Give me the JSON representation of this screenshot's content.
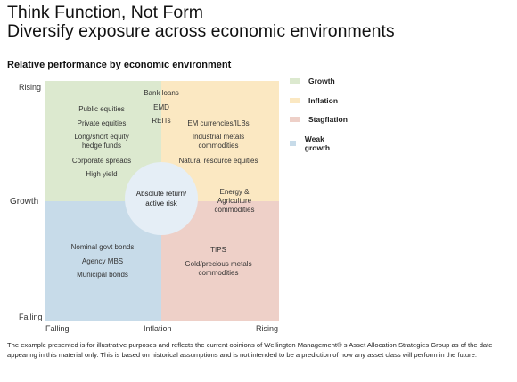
{
  "header": {
    "title_line1": "Think Function, Not Form",
    "title_line2": "Diversify exposure across economic environments",
    "subtitle": "Relative performance by economic environment"
  },
  "axes": {
    "y_top": "Rising",
    "y_label": "Growth",
    "y_bottom": "Falling",
    "x_left": "Falling",
    "x_label": "Inflation",
    "x_right": "Rising"
  },
  "quadrants": {
    "growth": {
      "color": "#dce9cf",
      "items": [
        "Public equities",
        "Private equities",
        "Long/short equity\nhedge funds",
        "Corporate spreads",
        "High yield"
      ]
    },
    "center_top": {
      "items": [
        "Bank loans",
        "EMD",
        "REITs"
      ]
    },
    "inflation": {
      "color": "#fbe8c2",
      "items": [
        "EM currencies/ILBs",
        "Industrial metals\ncommodities",
        "Natural resource equities"
      ]
    },
    "inflation_low": {
      "items": [
        "Energy &\nAgriculture\ncommodities"
      ]
    },
    "weak_growth": {
      "color": "#c7dbe9",
      "items": [
        "Nominal govt bonds",
        "Agency MBS",
        "Municipal bonds"
      ]
    },
    "stagflation": {
      "color": "#eed0c8",
      "items": [
        "TIPS",
        "Gold/precious metals\ncommodities"
      ]
    },
    "center": "Absolute return/\nactive risk"
  },
  "legend": [
    {
      "label": "Growth",
      "color": "#dce9cf"
    },
    {
      "label": "Inflation",
      "color": "#fbe8c2"
    },
    {
      "label": "Stagflation",
      "color": "#eed0c8"
    },
    {
      "label": "Weak growth",
      "color": "#c7dbe9"
    }
  ],
  "footnote": "The example presented is for illustrative purposes and reflects the current opinions of Wellington Management® s Asset Allocation Strategies Group as of the date appearing in this material only. This is based on historical assumptions and is not intended to be a prediction of how any asset class will perform in the future."
}
